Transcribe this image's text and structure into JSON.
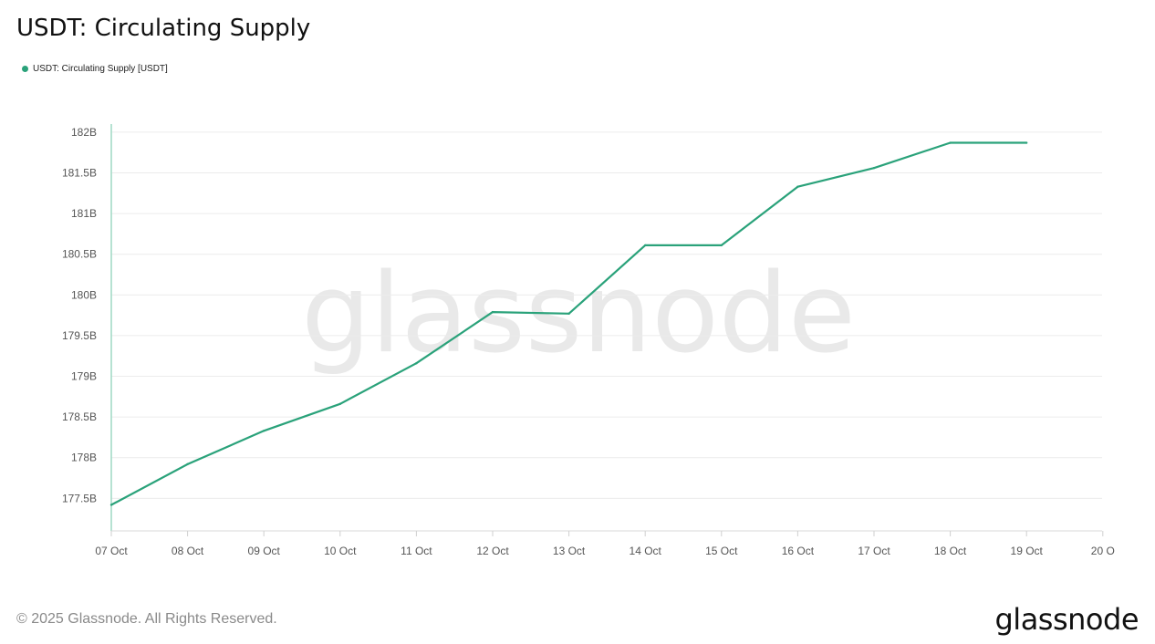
{
  "title": "USDT: Circulating Supply",
  "footer": {
    "copyright": "© 2025 Glassnode. All Rights Reserved.",
    "logo": "glassnode"
  },
  "watermark": "glassnode",
  "colors": {
    "series": "#2aa27a",
    "grid": "#ececec",
    "axis": "#9ed8c4"
  },
  "chart_data": {
    "type": "line",
    "title": "USDT: Circulating Supply",
    "legend_position": "top-left",
    "grid": true,
    "x": [
      "07 Oct",
      "08 Oct",
      "09 Oct",
      "10 Oct",
      "11 Oct",
      "12 Oct",
      "13 Oct",
      "14 Oct",
      "15 Oct",
      "16 Oct",
      "17 Oct",
      "18 Oct",
      "19 Oct"
    ],
    "x_ticks": [
      "07 Oct",
      "08 Oct",
      "09 Oct",
      "10 Oct",
      "11 Oct",
      "12 Oct",
      "13 Oct",
      "14 Oct",
      "15 Oct",
      "16 Oct",
      "17 Oct",
      "18 Oct",
      "19 Oct",
      "20 O"
    ],
    "y_ticks": [
      "177.5B",
      "178B",
      "178.5B",
      "179B",
      "179.5B",
      "180B",
      "180.5B",
      "181B",
      "181.5B",
      "182B"
    ],
    "y_tick_values": [
      177.5,
      178,
      178.5,
      179,
      179.5,
      180,
      180.5,
      181,
      181.5,
      182
    ],
    "ylim": [
      177.1,
      182.1
    ],
    "series": [
      {
        "name": "USDT: Circulating Supply [USDT]",
        "color": "#2aa27a",
        "values": [
          177.42,
          177.92,
          178.33,
          178.66,
          179.16,
          179.79,
          179.77,
          180.61,
          180.61,
          181.33,
          181.56,
          181.87,
          181.87
        ]
      }
    ]
  }
}
